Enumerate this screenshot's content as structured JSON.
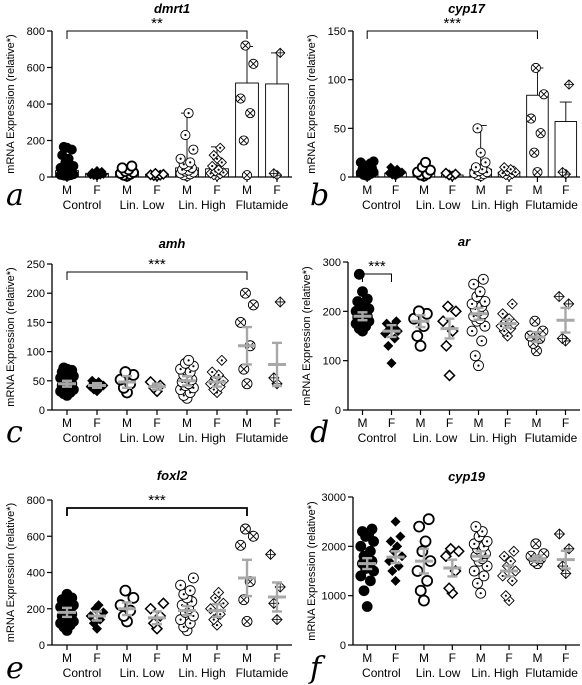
{
  "figure": {
    "category_labels": [
      "M",
      "F",
      "M",
      "F",
      "M",
      "F",
      "M",
      "F"
    ],
    "group_labels": [
      "Control",
      "Lin. Low",
      "Lin. High",
      "Flutamide"
    ],
    "ylabel": "mRNA Expression (relative*)"
  },
  "chart_data": [
    {
      "type": "scatter",
      "panel_letter": "a",
      "title": "dmrt1",
      "ylim": [
        0,
        800
      ],
      "yticks": [
        0,
        200,
        400,
        600,
        800
      ],
      "bars": true,
      "significance": {
        "label": "**",
        "from": 0,
        "to": 6
      },
      "series": [
        {
          "category": "Control M",
          "marker": "filled-circle",
          "mean": 35,
          "err": 30,
          "values": [
            5,
            8,
            10,
            12,
            15,
            18,
            20,
            25,
            30,
            35,
            40,
            45,
            50,
            60,
            80,
            100,
            120,
            150,
            160,
            165
          ]
        },
        {
          "category": "Control F",
          "marker": "filled-diamond",
          "mean": 20,
          "err": 5,
          "values": [
            5,
            8,
            10,
            12,
            15,
            18,
            20,
            25,
            30,
            35
          ]
        },
        {
          "category": "Lin. Low M",
          "marker": "open-circle",
          "mean": 30,
          "err": 12,
          "values": [
            5,
            10,
            15,
            20,
            25,
            30,
            40,
            50,
            60
          ]
        },
        {
          "category": "Lin. Low F",
          "marker": "open-diamond",
          "mean": 15,
          "err": 5,
          "values": [
            5,
            8,
            10,
            12,
            15,
            20
          ]
        },
        {
          "category": "Lin. High M",
          "marker": "dot-circle",
          "mean": 50,
          "err": 300,
          "values": [
            5,
            10,
            15,
            20,
            25,
            30,
            35,
            40,
            50,
            60,
            70,
            80,
            100,
            150,
            230,
            350
          ]
        },
        {
          "category": "Lin. High F",
          "marker": "dot-diamond",
          "mean": 45,
          "err": 120,
          "values": [
            5,
            10,
            15,
            20,
            25,
            30,
            40,
            60,
            80,
            100,
            120,
            160
          ]
        },
        {
          "category": "Flutamide M",
          "marker": "cross-circle",
          "mean": 515,
          "err": 200,
          "values": [
            10,
            200,
            350,
            430,
            620,
            720
          ]
        },
        {
          "category": "Flutamide F",
          "marker": "plus-diamond",
          "mean": 510,
          "err": 170,
          "values": [
            10,
            20,
            680
          ]
        }
      ]
    },
    {
      "type": "scatter",
      "panel_letter": "b",
      "title": "cyp17",
      "ylim": [
        0,
        150
      ],
      "yticks": [
        0,
        50,
        100,
        150
      ],
      "bars": true,
      "significance": {
        "label": "***",
        "from": 0,
        "to": 6
      },
      "series": [
        {
          "category": "Control M",
          "marker": "filled-circle",
          "mean": 6,
          "err": 6,
          "values": [
            1,
            2,
            3,
            4,
            5,
            6,
            7,
            8,
            9,
            10,
            12,
            14,
            15,
            16
          ]
        },
        {
          "category": "Control F",
          "marker": "filled-diamond",
          "mean": 4,
          "err": 2,
          "values": [
            1,
            2,
            3,
            4,
            5,
            6,
            8,
            10
          ]
        },
        {
          "category": "Lin. Low M",
          "marker": "open-circle",
          "mean": 5,
          "err": 4,
          "values": [
            1,
            2,
            3,
            5,
            7,
            10,
            15
          ]
        },
        {
          "category": "Lin. Low F",
          "marker": "open-diamond",
          "mean": 2,
          "err": 1,
          "values": [
            1,
            2,
            3,
            4
          ]
        },
        {
          "category": "Lin. High M",
          "marker": "dot-circle",
          "mean": 8,
          "err": 45,
          "values": [
            1,
            2,
            3,
            4,
            5,
            6,
            8,
            10,
            15,
            25,
            50
          ]
        },
        {
          "category": "Lin. High F",
          "marker": "dot-diamond",
          "mean": 5,
          "err": 6,
          "values": [
            1,
            2,
            3,
            4,
            5,
            6,
            8,
            10
          ]
        },
        {
          "category": "Flutamide M",
          "marker": "cross-circle",
          "mean": 84,
          "err": 28,
          "values": [
            5,
            25,
            45,
            60,
            85,
            112
          ]
        },
        {
          "category": "Flutamide F",
          "marker": "plus-diamond",
          "mean": 57,
          "err": 20,
          "values": [
            3,
            5,
            95
          ]
        }
      ]
    },
    {
      "type": "scatter",
      "panel_letter": "c",
      "title": "amh",
      "ylim": [
        0,
        250
      ],
      "yticks": [
        0,
        50,
        100,
        150,
        200,
        250
      ],
      "bars": false,
      "significance": {
        "label": "***",
        "from": 0,
        "to": 6
      },
      "series": [
        {
          "category": "Control M",
          "marker": "filled-circle",
          "mean": 45,
          "err": 5,
          "values": [
            25,
            28,
            30,
            32,
            35,
            38,
            40,
            42,
            45,
            48,
            50,
            52,
            55,
            58,
            60,
            62,
            65,
            68,
            70,
            72
          ]
        },
        {
          "category": "Control F",
          "marker": "filled-diamond",
          "mean": 42,
          "err": 4,
          "values": [
            32,
            35,
            38,
            40,
            42,
            45,
            48,
            50
          ]
        },
        {
          "category": "Lin. Low M",
          "marker": "open-circle",
          "mean": 48,
          "err": 10,
          "values": [
            30,
            38,
            45,
            52,
            60,
            65
          ]
        },
        {
          "category": "Lin. Low F",
          "marker": "open-diamond",
          "mean": 40,
          "err": 5,
          "values": [
            32,
            38,
            42,
            48
          ]
        },
        {
          "category": "Lin. High M",
          "marker": "dot-circle",
          "mean": 50,
          "err": 8,
          "values": [
            20,
            25,
            30,
            35,
            38,
            42,
            45,
            48,
            52,
            55,
            60,
            65,
            70,
            75,
            80,
            85
          ]
        },
        {
          "category": "Lin. High F",
          "marker": "dot-diamond",
          "mean": 48,
          "err": 8,
          "values": [
            30,
            35,
            40,
            45,
            50,
            55,
            60,
            65,
            85
          ]
        },
        {
          "category": "Flutamide M",
          "marker": "cross-circle",
          "mean": 110,
          "err": 32,
          "values": [
            45,
            70,
            110,
            150,
            180,
            200
          ]
        },
        {
          "category": "Flutamide F",
          "marker": "plus-diamond",
          "mean": 78,
          "err": 37,
          "values": [
            45,
            55,
            185
          ]
        }
      ]
    },
    {
      "type": "scatter",
      "panel_letter": "d",
      "title": "ar",
      "ylim": [
        0,
        300
      ],
      "yticks": [
        0,
        100,
        200,
        300
      ],
      "bars": false,
      "significance": {
        "label": "***",
        "from": 0,
        "to": 1
      },
      "series": [
        {
          "category": "Control M",
          "marker": "filled-circle",
          "mean": 190,
          "err": 8,
          "values": [
            160,
            165,
            170,
            175,
            180,
            182,
            185,
            188,
            190,
            192,
            195,
            198,
            200,
            205,
            210,
            215,
            220,
            225,
            240,
            275
          ]
        },
        {
          "category": "Control F",
          "marker": "filled-diamond",
          "mean": 160,
          "err": 12,
          "values": [
            95,
            130,
            145,
            155,
            160,
            165,
            170,
            175,
            180
          ]
        },
        {
          "category": "Lin. Low M",
          "marker": "open-circle",
          "mean": 180,
          "err": 12,
          "values": [
            130,
            150,
            170,
            185,
            195,
            200
          ]
        },
        {
          "category": "Lin. Low F",
          "marker": "open-diamond",
          "mean": 165,
          "err": 20,
          "values": [
            70,
            130,
            160,
            180,
            200,
            210
          ]
        },
        {
          "category": "Lin. High M",
          "marker": "dot-circle",
          "mean": 195,
          "err": 12,
          "values": [
            90,
            110,
            140,
            160,
            170,
            180,
            185,
            190,
            195,
            200,
            205,
            210,
            215,
            220,
            230,
            240,
            255,
            265
          ]
        },
        {
          "category": "Lin. High F",
          "marker": "dot-diamond",
          "mean": 175,
          "err": 8,
          "values": [
            150,
            160,
            165,
            170,
            175,
            180,
            185,
            195,
            215
          ]
        },
        {
          "category": "Flutamide M",
          "marker": "cross-circle",
          "mean": 148,
          "err": 10,
          "values": [
            120,
            135,
            145,
            150,
            160,
            180
          ]
        },
        {
          "category": "Flutamide F",
          "marker": "plus-diamond",
          "mean": 182,
          "err": 25,
          "values": [
            140,
            145,
            215,
            230
          ]
        }
      ]
    },
    {
      "type": "scatter",
      "panel_letter": "e",
      "title": "foxl2",
      "ylim": [
        0,
        800
      ],
      "yticks": [
        0,
        200,
        400,
        600,
        800
      ],
      "bars": false,
      "significance": {
        "label": "***",
        "from": 0,
        "to": 6
      },
      "series": [
        {
          "category": "Control M",
          "marker": "filled-circle",
          "mean": 180,
          "err": 25,
          "values": [
            80,
            100,
            110,
            120,
            130,
            140,
            150,
            160,
            170,
            180,
            190,
            200,
            210,
            220,
            230,
            240,
            250,
            260,
            280
          ]
        },
        {
          "category": "Control F",
          "marker": "filled-diamond",
          "mean": 160,
          "err": 25,
          "values": [
            90,
            120,
            140,
            160,
            180,
            200,
            220
          ]
        },
        {
          "category": "Lin. Low M",
          "marker": "open-circle",
          "mean": 200,
          "err": 35,
          "values": [
            130,
            160,
            190,
            220,
            260,
            300
          ]
        },
        {
          "category": "Lin. Low F",
          "marker": "open-diamond",
          "mean": 150,
          "err": 35,
          "values": [
            90,
            120,
            160,
            200,
            230
          ]
        },
        {
          "category": "Lin. High M",
          "marker": "dot-circle",
          "mean": 190,
          "err": 25,
          "values": [
            80,
            100,
            120,
            140,
            160,
            180,
            200,
            220,
            240,
            260,
            280,
            300,
            330,
            370
          ]
        },
        {
          "category": "Lin. High F",
          "marker": "dot-diamond",
          "mean": 190,
          "err": 35,
          "values": [
            110,
            140,
            170,
            200,
            230,
            260,
            290
          ]
        },
        {
          "category": "Flutamide M",
          "marker": "cross-circle",
          "mean": 370,
          "err": 100,
          "values": [
            130,
            250,
            350,
            550,
            600,
            640
          ]
        },
        {
          "category": "Flutamide F",
          "marker": "plus-diamond",
          "mean": 265,
          "err": 80,
          "values": [
            140,
            230,
            320,
            500
          ]
        }
      ]
    },
    {
      "type": "scatter",
      "panel_letter": "f",
      "title": "cyp19",
      "ylim": [
        0,
        3000
      ],
      "yticks": [
        0,
        1000,
        2000,
        3000
      ],
      "bars": false,
      "significance": null,
      "series": [
        {
          "category": "Control M",
          "marker": "filled-circle",
          "mean": 1650,
          "err": 110,
          "values": [
            780,
            1100,
            1300,
            1400,
            1500,
            1550,
            1600,
            1650,
            1700,
            1750,
            1800,
            1900,
            2000,
            2100,
            2200,
            2250,
            2300,
            2350
          ]
        },
        {
          "category": "Control F",
          "marker": "filled-diamond",
          "mean": 1780,
          "err": 120,
          "values": [
            1300,
            1500,
            1600,
            1700,
            1800,
            1900,
            2000,
            2100,
            2200,
            2500
          ]
        },
        {
          "category": "Lin. Low M",
          "marker": "open-circle",
          "mean": 1700,
          "err": 250,
          "values": [
            900,
            1100,
            1300,
            1500,
            1700,
            1900,
            2100,
            2400,
            2550
          ]
        },
        {
          "category": "Lin. Low F",
          "marker": "open-diamond",
          "mean": 1560,
          "err": 170,
          "values": [
            1050,
            1150,
            1500,
            1800,
            1900,
            1950
          ]
        },
        {
          "category": "Lin. High M",
          "marker": "dot-circle",
          "mean": 1800,
          "err": 100,
          "values": [
            1050,
            1250,
            1400,
            1500,
            1600,
            1700,
            1750,
            1800,
            1850,
            1900,
            1950,
            2000,
            2050,
            2100,
            2200,
            2300,
            2400
          ]
        },
        {
          "category": "Lin. High F",
          "marker": "dot-diamond",
          "mean": 1500,
          "err": 110,
          "values": [
            900,
            1000,
            1300,
            1400,
            1500,
            1600,
            1700,
            1800,
            1900
          ]
        },
        {
          "category": "Flutamide M",
          "marker": "cross-circle",
          "mean": 1750,
          "err": 60,
          "values": [
            1650,
            1700,
            1750,
            1800,
            1850,
            2050
          ]
        },
        {
          "category": "Flutamide F",
          "marker": "plus-diamond",
          "mean": 1730,
          "err": 180,
          "values": [
            1450,
            1600,
            1950,
            2250
          ]
        }
      ]
    }
  ]
}
